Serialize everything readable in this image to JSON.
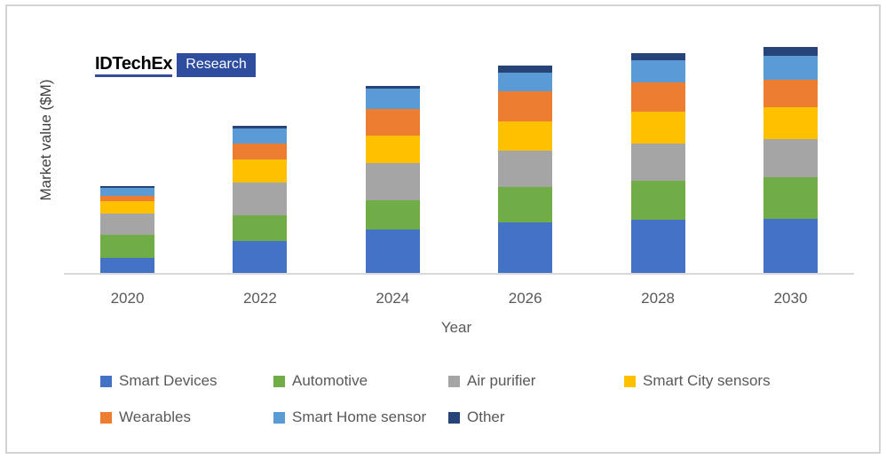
{
  "logo": {
    "brand": "IDTechEx",
    "sub": "Research",
    "accent_color": "#2e4d9e",
    "brand_text_color": "#000000",
    "sub_text_color": "#ffffff"
  },
  "colors": {
    "canvas_background": "#ffffff",
    "frame_border": "#d3d3d3",
    "axis_line": "#d9d9d9",
    "tick_text": "#595959",
    "axis_title_text": "#404040",
    "legend_text": "#595959"
  },
  "chart_data": {
    "type": "bar",
    "stacked": true,
    "title": "",
    "xlabel": "Year",
    "ylabel": "Market value ($M)",
    "categories": [
      "2020",
      "2022",
      "2024",
      "2026",
      "2028",
      "2030"
    ],
    "series": [
      {
        "name": "Smart Devices",
        "color": "#4472c4",
        "values": [
          17,
          36,
          49,
          57,
          60,
          61
        ]
      },
      {
        "name": "Automotive",
        "color": "#70ad47",
        "values": [
          26,
          29,
          33,
          40,
          44,
          47
        ]
      },
      {
        "name": "Air purifier",
        "color": "#a5a5a5",
        "values": [
          24,
          37,
          42,
          41,
          42,
          43
        ]
      },
      {
        "name": "Smart City sensors",
        "color": "#ffc000",
        "values": [
          14,
          26,
          31,
          33,
          36,
          36
        ]
      },
      {
        "name": "Wearables",
        "color": "#ed7d31",
        "values": [
          6,
          18,
          30,
          34,
          33,
          31
        ]
      },
      {
        "name": "Smart Home sensor",
        "color": "#5b9bd5",
        "values": [
          9,
          17,
          23,
          21,
          25,
          27
        ]
      },
      {
        "name": "Other",
        "color": "#264478",
        "values": [
          2,
          3,
          3,
          8,
          8,
          10
        ]
      }
    ],
    "y_axis_tick_labels_visible": false,
    "gridlines": false,
    "legend_position": "bottom"
  }
}
